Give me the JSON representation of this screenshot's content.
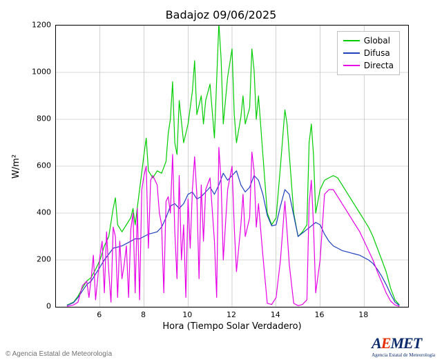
{
  "title": "Badajoz 09/06/2025",
  "ylabel": "W/m²",
  "xlabel": "Hora (Tiempo Solar Verdadero)",
  "copyright": "© Agencia Estatal de Meteorología",
  "logo": {
    "text": "AEMET",
    "e_index": 1,
    "subtitle": "Agencia Estatal de Meteorología"
  },
  "chart": {
    "type": "line",
    "background_color": "#ffffff",
    "grid_color": "#b0b0b0",
    "border_color": "#000000",
    "xlim": [
      4.0,
      20.0
    ],
    "ylim": [
      0,
      1200
    ],
    "xticks": [
      6,
      8,
      10,
      12,
      14,
      16,
      18
    ],
    "yticks": [
      0,
      200,
      400,
      600,
      800,
      1000,
      1200
    ],
    "line_width": 1.2,
    "legend": {
      "position": "top-right",
      "border_color": "#bfbfbf",
      "items": [
        {
          "label": "Global",
          "color": "#00cc00"
        },
        {
          "label": "Difusa",
          "color": "#1f3fbf"
        },
        {
          "label": "Directa",
          "color": "#e600e6"
        }
      ]
    },
    "series": [
      {
        "name": "Global",
        "color": "#00cc00",
        "x": [
          4.5,
          4.8,
          5.0,
          5.2,
          5.4,
          5.6,
          5.8,
          6.0,
          6.2,
          6.4,
          6.6,
          6.7,
          6.8,
          7.0,
          7.2,
          7.4,
          7.5,
          7.6,
          7.8,
          8.0,
          8.1,
          8.2,
          8.4,
          8.6,
          8.8,
          9.0,
          9.1,
          9.2,
          9.3,
          9.4,
          9.5,
          9.6,
          9.8,
          10.0,
          10.2,
          10.3,
          10.4,
          10.6,
          10.7,
          10.8,
          11.0,
          11.2,
          11.4,
          11.5,
          11.6,
          11.8,
          12.0,
          12.1,
          12.2,
          12.4,
          12.5,
          12.6,
          12.8,
          12.9,
          13.0,
          13.1,
          13.2,
          13.4,
          13.6,
          13.8,
          14.0,
          14.2,
          14.4,
          14.5,
          14.6,
          14.8,
          15.0,
          15.2,
          15.4,
          15.5,
          15.6,
          15.7,
          15.8,
          16.0,
          16.2,
          16.4,
          16.6,
          16.8,
          17.0,
          17.2,
          17.4,
          17.6,
          17.8,
          18.0,
          18.2,
          18.4,
          18.6,
          18.8,
          19.0,
          19.2,
          19.4,
          19.6
        ],
        "y": [
          7,
          20,
          45,
          80,
          110,
          125,
          160,
          200,
          260,
          300,
          420,
          465,
          350,
          320,
          350,
          380,
          420,
          350,
          500,
          650,
          720,
          580,
          550,
          580,
          570,
          620,
          740,
          800,
          960,
          700,
          650,
          880,
          700,
          780,
          920,
          1050,
          820,
          900,
          780,
          880,
          950,
          720,
          1210,
          1060,
          780,
          980,
          1100,
          820,
          700,
          810,
          900,
          780,
          850,
          1100,
          1010,
          800,
          900,
          650,
          400,
          350,
          380,
          600,
          840,
          780,
          650,
          400,
          300,
          320,
          350,
          700,
          780,
          650,
          400,
          500,
          540,
          550,
          560,
          550,
          520,
          490,
          460,
          430,
          400,
          370,
          340,
          300,
          250,
          200,
          150,
          80,
          30,
          8
        ]
      },
      {
        "name": "Difusa",
        "color": "#1f3fbf",
        "x": [
          4.5,
          4.8,
          5.0,
          5.2,
          5.4,
          5.6,
          5.8,
          6.0,
          6.2,
          6.4,
          6.6,
          6.8,
          7.0,
          7.2,
          7.4,
          7.6,
          7.8,
          8.0,
          8.2,
          8.4,
          8.6,
          8.8,
          9.0,
          9.2,
          9.4,
          9.6,
          9.8,
          10.0,
          10.2,
          10.4,
          10.6,
          10.8,
          11.0,
          11.2,
          11.4,
          11.6,
          11.8,
          12.0,
          12.2,
          12.4,
          12.6,
          12.8,
          13.0,
          13.2,
          13.4,
          13.6,
          13.8,
          14.0,
          14.2,
          14.4,
          14.6,
          14.8,
          15.0,
          15.2,
          15.4,
          15.6,
          15.8,
          16.0,
          16.2,
          16.4,
          16.6,
          16.8,
          17.0,
          17.2,
          17.4,
          17.6,
          17.8,
          18.0,
          18.2,
          18.4,
          18.6,
          18.8,
          19.0,
          19.2,
          19.4,
          19.6
        ],
        "y": [
          6,
          18,
          40,
          68,
          95,
          110,
          140,
          170,
          200,
          225,
          250,
          255,
          260,
          270,
          280,
          290,
          290,
          300,
          310,
          315,
          320,
          340,
          380,
          430,
          440,
          420,
          440,
          480,
          490,
          460,
          470,
          490,
          510,
          480,
          520,
          570,
          540,
          560,
          580,
          520,
          490,
          510,
          560,
          540,
          480,
          390,
          345,
          350,
          430,
          500,
          480,
          390,
          300,
          315,
          330,
          345,
          360,
          350,
          310,
          280,
          260,
          250,
          240,
          235,
          230,
          225,
          220,
          210,
          200,
          185,
          160,
          130,
          95,
          55,
          20,
          6
        ]
      },
      {
        "name": "Directa",
        "color": "#e600e6",
        "x": [
          4.5,
          4.8,
          5.0,
          5.2,
          5.4,
          5.5,
          5.6,
          5.7,
          5.8,
          6.0,
          6.1,
          6.2,
          6.3,
          6.4,
          6.5,
          6.6,
          6.7,
          6.8,
          6.9,
          7.0,
          7.1,
          7.2,
          7.3,
          7.4,
          7.5,
          7.6,
          7.7,
          7.8,
          7.9,
          8.0,
          8.1,
          8.2,
          8.3,
          8.4,
          8.5,
          8.6,
          8.7,
          8.8,
          8.9,
          9.0,
          9.1,
          9.2,
          9.3,
          9.4,
          9.5,
          9.6,
          9.7,
          9.8,
          9.9,
          10.0,
          10.1,
          10.2,
          10.3,
          10.4,
          10.5,
          10.6,
          10.7,
          10.8,
          11.0,
          11.2,
          11.3,
          11.4,
          11.5,
          11.6,
          11.8,
          12.0,
          12.1,
          12.2,
          12.4,
          12.5,
          12.6,
          12.8,
          12.9,
          13.0,
          13.1,
          13.2,
          13.4,
          13.6,
          13.8,
          14.0,
          14.2,
          14.4,
          14.5,
          14.6,
          14.8,
          15.0,
          15.2,
          15.4,
          15.5,
          15.6,
          15.7,
          15.8,
          16.0,
          16.2,
          16.4,
          16.6,
          16.8,
          17.0,
          17.2,
          17.4,
          17.6,
          17.8,
          18.0,
          18.2,
          18.4,
          18.6,
          18.8,
          19.0,
          19.2,
          19.4,
          19.6
        ],
        "y": [
          2,
          8,
          20,
          90,
          110,
          40,
          120,
          220,
          30,
          220,
          280,
          60,
          320,
          150,
          20,
          340,
          300,
          40,
          280,
          120,
          180,
          260,
          40,
          330,
          400,
          60,
          420,
          30,
          500,
          560,
          600,
          250,
          540,
          560,
          540,
          520,
          400,
          350,
          60,
          450,
          470,
          400,
          650,
          320,
          120,
          560,
          200,
          350,
          40,
          460,
          250,
          500,
          640,
          480,
          120,
          520,
          280,
          500,
          550,
          280,
          40,
          680,
          540,
          200,
          500,
          600,
          340,
          150,
          350,
          480,
          300,
          380,
          660,
          580,
          340,
          440,
          220,
          15,
          10,
          40,
          200,
          450,
          320,
          180,
          15,
          5,
          10,
          30,
          440,
          540,
          350,
          60,
          200,
          480,
          500,
          500,
          470,
          440,
          410,
          380,
          350,
          320,
          280,
          240,
          200,
          150,
          105,
          60,
          25,
          8,
          2
        ]
      }
    ]
  }
}
